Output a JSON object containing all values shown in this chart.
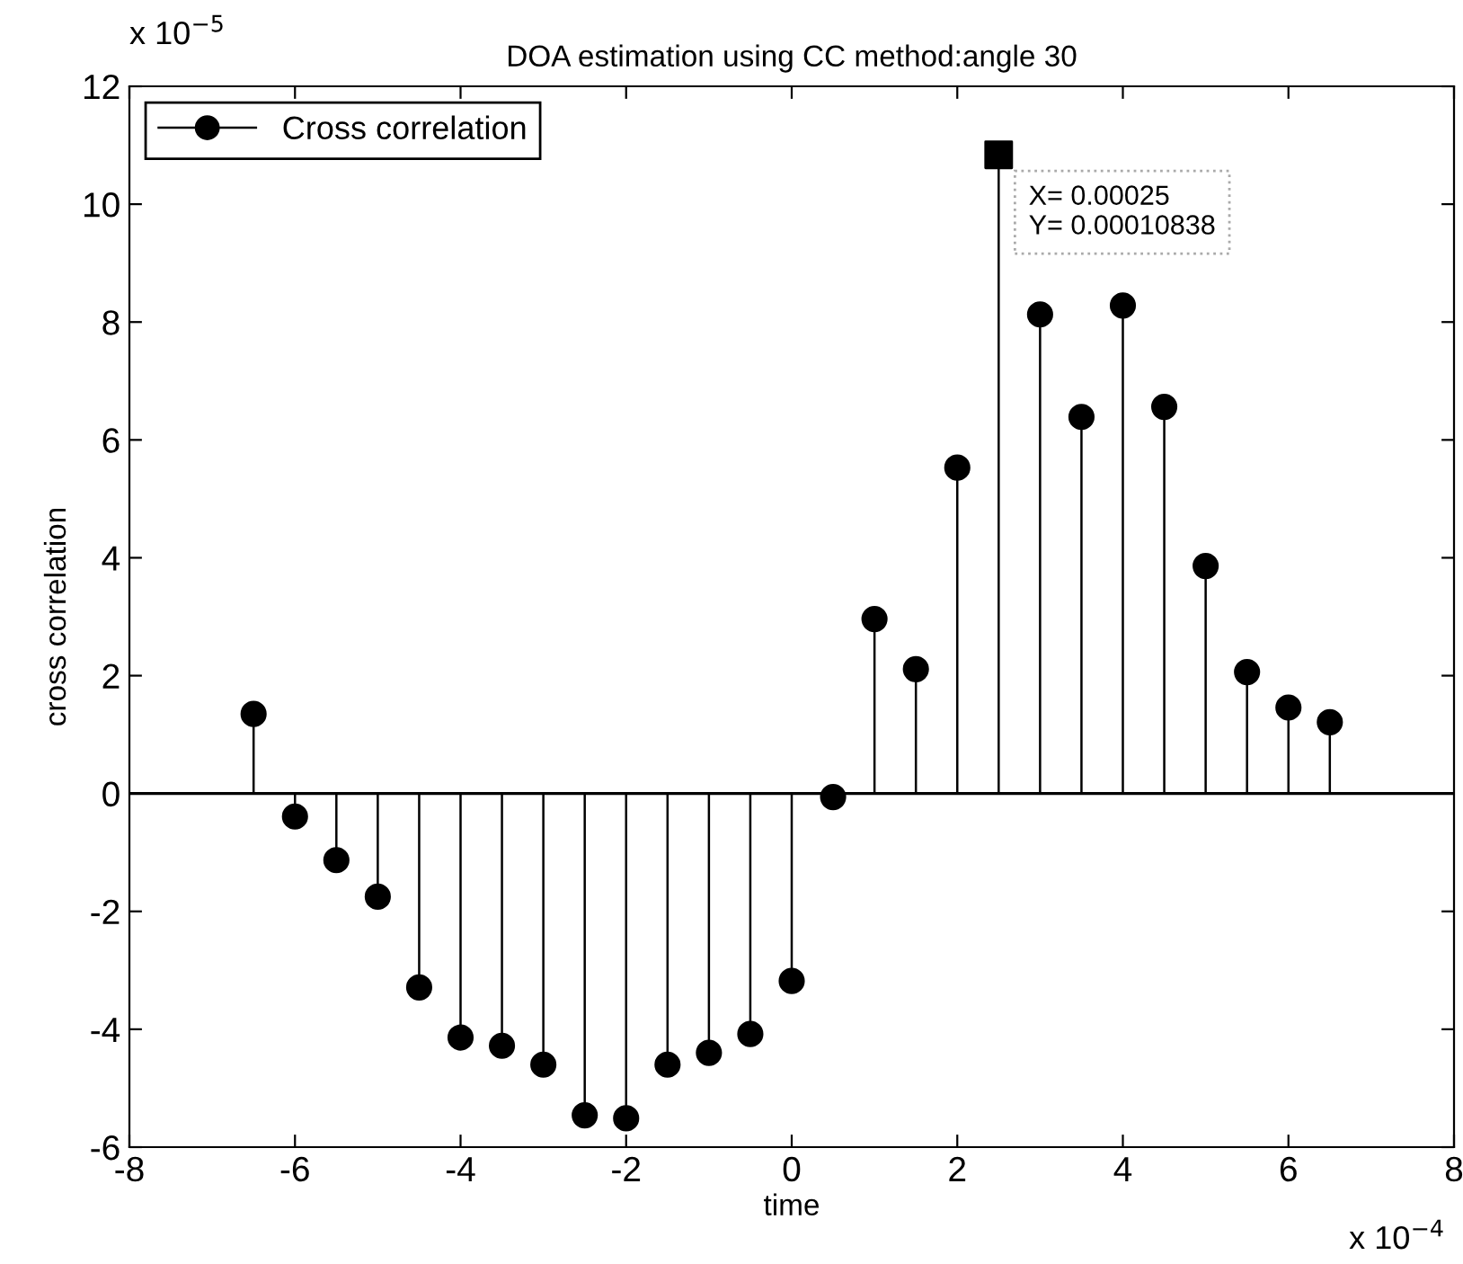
{
  "chart_data": {
    "type": "lollipop",
    "title": "DOA estimation using CC method:angle 30",
    "xlabel": "time",
    "ylabel": "cross correlation",
    "x": [
      -6.5,
      -6,
      -5.5,
      -5,
      -4.5,
      -4,
      -3.5,
      -3,
      -2.5,
      -2,
      -1.5,
      -1,
      -0.5,
      0,
      0.5,
      1,
      1.5,
      2,
      2.5,
      3,
      3.5,
      4,
      4.5,
      5,
      5.5,
      6,
      6.5
    ],
    "series": [
      {
        "name": "Cross correlation",
        "color": "#000000",
        "values": [
          1.35,
          -0.39,
          -1.13,
          -1.75,
          -3.29,
          -4.14,
          -4.28,
          -4.6,
          -5.46,
          -5.51,
          -4.6,
          -4.4,
          -4.08,
          -3.18,
          -0.06,
          2.96,
          2.11,
          5.53,
          10.838,
          8.13,
          6.39,
          8.28,
          6.56,
          3.86,
          2.06,
          1.46,
          1.21
        ]
      }
    ],
    "xlim": [
      -8,
      8
    ],
    "ylim": [
      -6,
      12
    ],
    "xticks": [
      -8,
      -6,
      -4,
      -2,
      0,
      2,
      4,
      6,
      8
    ],
    "yticks": [
      -6,
      -4,
      -2,
      0,
      2,
      4,
      6,
      8,
      10,
      12
    ],
    "annotations": [
      {
        "text": "X= 0.00025\nY= 0.00010838",
        "x": 2.5,
        "y": 10.838
      },
      "x 10$^{−5}$",
      "x 10$^{−4}$"
    ],
    "ref_lines": [
      {
        "axis": "y",
        "value": 0,
        "color": "#000000",
        "line_style": "solid"
      }
    ],
    "legend": "top left",
    "grid": false,
    "marker": "circle",
    "line_style": "solid"
  }
}
